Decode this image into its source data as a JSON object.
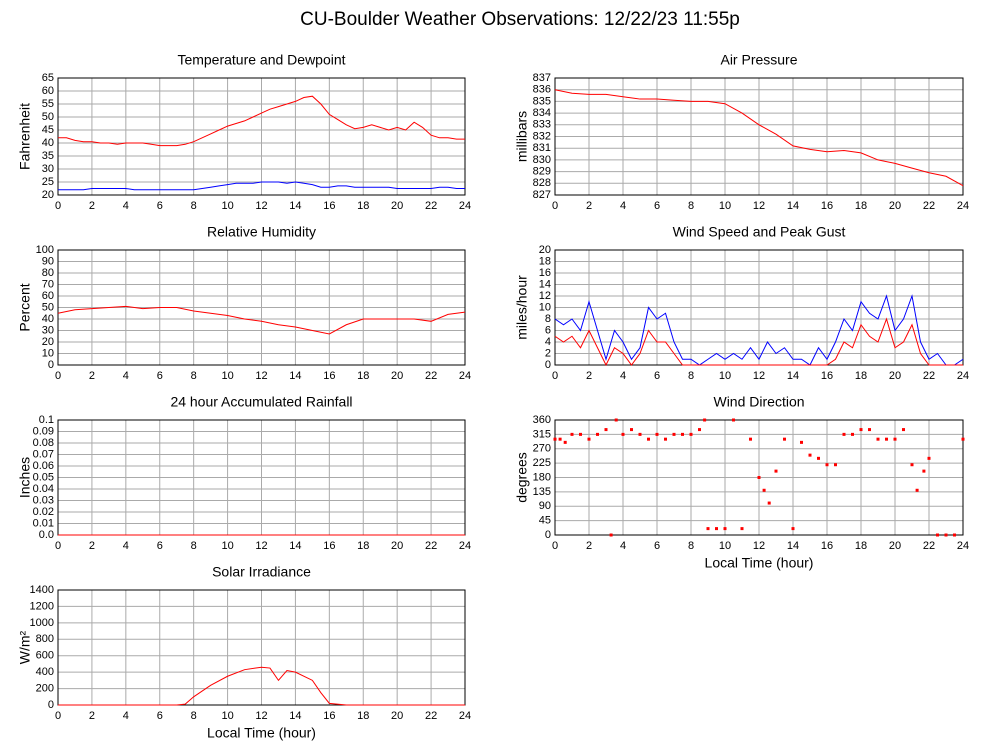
{
  "title": "CU-Boulder Weather Observations: 12/22/23 11:55p",
  "chart_data": [
    {
      "type": "line",
      "title": "Temperature and Dewpoint",
      "ylabel": "Fahrenheit",
      "grid": true,
      "x": [
        0,
        0.5,
        1,
        1.5,
        2,
        2.5,
        3,
        3.5,
        4,
        4.5,
        5,
        5.5,
        6,
        6.5,
        7,
        7.5,
        8,
        8.5,
        9,
        9.5,
        10,
        10.5,
        11,
        11.5,
        12,
        12.5,
        13,
        13.5,
        14,
        14.5,
        15,
        15.5,
        16,
        16.5,
        17,
        17.5,
        18,
        18.5,
        19,
        19.5,
        20,
        20.5,
        21,
        21.5,
        22,
        22.5,
        23,
        23.5,
        24
      ],
      "series": [
        {
          "color": "#ff0000",
          "values": [
            42,
            42,
            41,
            40.5,
            40.5,
            40,
            40,
            39.5,
            40,
            40,
            40,
            39.5,
            39,
            39,
            39,
            39.5,
            40.5,
            42,
            43.5,
            45,
            46.5,
            47.5,
            48.5,
            50,
            51.5,
            53,
            54,
            55,
            56,
            57.5,
            58,
            55,
            51,
            49,
            47,
            45.5,
            46,
            47,
            46,
            45,
            46,
            45,
            48,
            46,
            43,
            42,
            42,
            41.5,
            41.5
          ]
        },
        {
          "color": "#0000ff",
          "values": [
            22,
            22,
            22,
            22,
            22.5,
            22.5,
            22.5,
            22.5,
            22.5,
            22,
            22,
            22,
            22,
            22,
            22,
            22,
            22,
            22.5,
            23,
            23.5,
            24,
            24.5,
            24.5,
            24.5,
            25,
            25,
            25,
            24.5,
            25,
            24.5,
            24,
            23,
            23,
            23.5,
            23.5,
            23,
            23,
            23,
            23,
            23,
            22.5,
            22.5,
            22.5,
            22.5,
            22.5,
            23,
            23,
            22.5,
            22.5
          ]
        }
      ],
      "xlim": [
        0,
        24
      ],
      "xticks": [
        0,
        2,
        4,
        6,
        8,
        10,
        12,
        14,
        16,
        18,
        20,
        22,
        24
      ],
      "ylim": [
        20,
        65
      ],
      "yticks": [
        20,
        25,
        30,
        35,
        40,
        45,
        50,
        55,
        60,
        65
      ]
    },
    {
      "type": "line",
      "title": "Air Pressure",
      "ylabel": "millibars",
      "grid": true,
      "x": [
        0,
        1,
        2,
        3,
        4,
        5,
        6,
        7,
        8,
        9,
        10,
        11,
        12,
        13,
        14,
        15,
        16,
        17,
        18,
        19,
        20,
        21,
        22,
        23,
        24
      ],
      "series": [
        {
          "color": "#ff0000",
          "values": [
            836,
            835.7,
            835.6,
            835.6,
            835.4,
            835.2,
            835.2,
            835.1,
            835,
            835,
            834.8,
            834,
            833,
            832.2,
            831.2,
            830.9,
            830.7,
            830.8,
            830.6,
            830,
            829.7,
            829.3,
            828.9,
            828.6,
            827.8
          ]
        }
      ],
      "xlim": [
        0,
        24
      ],
      "xticks": [
        0,
        2,
        4,
        6,
        8,
        10,
        12,
        14,
        16,
        18,
        20,
        22,
        24
      ],
      "ylim": [
        827,
        837
      ],
      "yticks": [
        827,
        828,
        829,
        830,
        831,
        832,
        833,
        834,
        835,
        836,
        837
      ]
    },
    {
      "type": "line",
      "title": "Relative Humidity",
      "ylabel": "Percent",
      "grid": true,
      "x": [
        0,
        1,
        2,
        3,
        4,
        5,
        6,
        7,
        8,
        9,
        10,
        11,
        12,
        13,
        14,
        15,
        16,
        17,
        18,
        19,
        20,
        21,
        22,
        23,
        24
      ],
      "series": [
        {
          "color": "#ff0000",
          "values": [
            45,
            48,
            49,
            50,
            51,
            49,
            50,
            50,
            47,
            45,
            43,
            40,
            38,
            35,
            33,
            30,
            27,
            35,
            40,
            40,
            40,
            40,
            38,
            44,
            46
          ]
        }
      ],
      "xlim": [
        0,
        24
      ],
      "xticks": [
        0,
        2,
        4,
        6,
        8,
        10,
        12,
        14,
        16,
        18,
        20,
        22,
        24
      ],
      "ylim": [
        0,
        100
      ],
      "yticks": [
        0,
        10,
        20,
        30,
        40,
        50,
        60,
        70,
        80,
        90,
        100
      ]
    },
    {
      "type": "line",
      "title": "Wind Speed and Peak Gust",
      "ylabel": "miles/hour",
      "grid": true,
      "x": [
        0,
        0.5,
        1,
        1.5,
        2,
        2.5,
        3,
        3.5,
        4,
        4.5,
        5,
        5.5,
        6,
        6.5,
        7,
        7.5,
        8,
        8.5,
        9,
        9.5,
        10,
        10.5,
        11,
        11.5,
        12,
        12.5,
        13,
        13.5,
        14,
        14.5,
        15,
        15.5,
        16,
        16.5,
        17,
        17.5,
        18,
        18.5,
        19,
        19.5,
        20,
        20.5,
        21,
        21.5,
        22,
        22.5,
        23,
        23.5,
        24
      ],
      "series": [
        {
          "color": "#0000ff",
          "values": [
            8,
            7,
            8,
            6,
            11,
            6,
            1,
            6,
            4,
            1,
            3,
            10,
            8,
            9,
            4,
            1,
            1,
            0,
            1,
            2,
            1,
            2,
            1,
            3,
            1,
            4,
            2,
            3,
            1,
            1,
            0,
            3,
            1,
            4,
            8,
            6,
            11,
            9,
            8,
            12,
            6,
            8,
            12,
            4,
            1,
            2,
            0,
            0,
            1
          ]
        },
        {
          "color": "#ff0000",
          "values": [
            5,
            4,
            5,
            3,
            6,
            3,
            0,
            3,
            2,
            0,
            2,
            6,
            4,
            4,
            2,
            0,
            0,
            0,
            0,
            0,
            0,
            0,
            0,
            0,
            0,
            0,
            0,
            0,
            0,
            0,
            0,
            0,
            0,
            1,
            4,
            3,
            7,
            5,
            4,
            8,
            3,
            4,
            7,
            2,
            0,
            0,
            0,
            0,
            0
          ]
        }
      ],
      "xlim": [
        0,
        24
      ],
      "xticks": [
        0,
        2,
        4,
        6,
        8,
        10,
        12,
        14,
        16,
        18,
        20,
        22,
        24
      ],
      "ylim": [
        0,
        20
      ],
      "yticks": [
        0,
        2,
        4,
        6,
        8,
        10,
        12,
        14,
        16,
        18,
        20
      ]
    },
    {
      "type": "line",
      "title": "24 hour Accumulated Rainfall",
      "ylabel": "Inches",
      "grid": true,
      "x": [
        0,
        1,
        2,
        3,
        4,
        5,
        6,
        7,
        8,
        9,
        10,
        11,
        12,
        13,
        14,
        15,
        16,
        17,
        18,
        19,
        20,
        21,
        22,
        23,
        24
      ],
      "series": [
        {
          "color": "#ff0000",
          "values": [
            0,
            0,
            0,
            0,
            0,
            0,
            0,
            0,
            0,
            0,
            0,
            0,
            0,
            0,
            0,
            0,
            0,
            0,
            0,
            0,
            0,
            0,
            0,
            0,
            0
          ]
        }
      ],
      "xlim": [
        0,
        24
      ],
      "xticks": [
        0,
        2,
        4,
        6,
        8,
        10,
        12,
        14,
        16,
        18,
        20,
        22,
        24
      ],
      "ylim": [
        0,
        0.1
      ],
      "yticks": [
        {
          "value": 0,
          "label": "0.0"
        },
        0.01,
        0.02,
        0.03,
        0.04,
        0.05,
        0.06,
        0.07,
        0.08,
        0.09,
        0.1
      ]
    },
    {
      "type": "scatter",
      "title": "Wind Direction",
      "ylabel": "degrees",
      "xlabel": "Local Time (hour)",
      "grid": true,
      "color": "#ff0000",
      "x": [
        0,
        0.3,
        0.6,
        1,
        1.5,
        2,
        2.5,
        3,
        3.3,
        3.6,
        4,
        4.5,
        5,
        5.5,
        6,
        6.5,
        7,
        7.5,
        8,
        8.5,
        8.8,
        9,
        9.5,
        10,
        10.5,
        11,
        11.5,
        12,
        12.3,
        12.6,
        13,
        13.5,
        14,
        14.5,
        15,
        15.5,
        16,
        16.5,
        17,
        17.5,
        18,
        18.5,
        19,
        19.5,
        20,
        20.5,
        21,
        21.3,
        21.7,
        22,
        22.5,
        23,
        23.5,
        24
      ],
      "values": [
        300,
        300,
        290,
        315,
        315,
        300,
        315,
        330,
        0,
        360,
        315,
        330,
        315,
        300,
        315,
        300,
        315,
        315,
        315,
        330,
        360,
        20,
        20,
        20,
        360,
        20,
        300,
        180,
        140,
        100,
        200,
        300,
        20,
        290,
        250,
        240,
        220,
        220,
        315,
        315,
        330,
        330,
        300,
        300,
        300,
        330,
        220,
        140,
        200,
        240,
        0,
        0,
        0,
        300
      ],
      "xlim": [
        0,
        24
      ],
      "xticks": [
        0,
        2,
        4,
        6,
        8,
        10,
        12,
        14,
        16,
        18,
        20,
        22,
        24
      ],
      "ylim": [
        0,
        360
      ],
      "yticks": [
        0,
        45,
        90,
        135,
        180,
        225,
        270,
        315,
        360
      ]
    },
    {
      "type": "line",
      "title": "Solar Irradiance",
      "ylabel": "W/m²",
      "xlabel": "Local Time (hour)",
      "grid": true,
      "x": [
        0,
        1,
        2,
        3,
        4,
        5,
        6,
        7,
        7.5,
        8,
        9,
        10,
        11,
        12,
        12.5,
        13,
        13.5,
        14,
        15,
        15.5,
        16,
        17,
        18,
        19,
        20,
        21,
        22,
        23,
        24
      ],
      "series": [
        {
          "color": "#ff0000",
          "values": [
            0,
            0,
            0,
            0,
            0,
            0,
            0,
            0,
            10,
            100,
            240,
            350,
            430,
            460,
            450,
            300,
            420,
            400,
            300,
            150,
            20,
            0,
            0,
            0,
            0,
            0,
            0,
            0,
            0
          ]
        }
      ],
      "xlim": [
        0,
        24
      ],
      "xticks": [
        0,
        2,
        4,
        6,
        8,
        10,
        12,
        14,
        16,
        18,
        20,
        22,
        24
      ],
      "ylim": [
        0,
        1400
      ],
      "yticks": [
        0,
        200,
        400,
        600,
        800,
        1000,
        1200,
        1400
      ]
    }
  ]
}
